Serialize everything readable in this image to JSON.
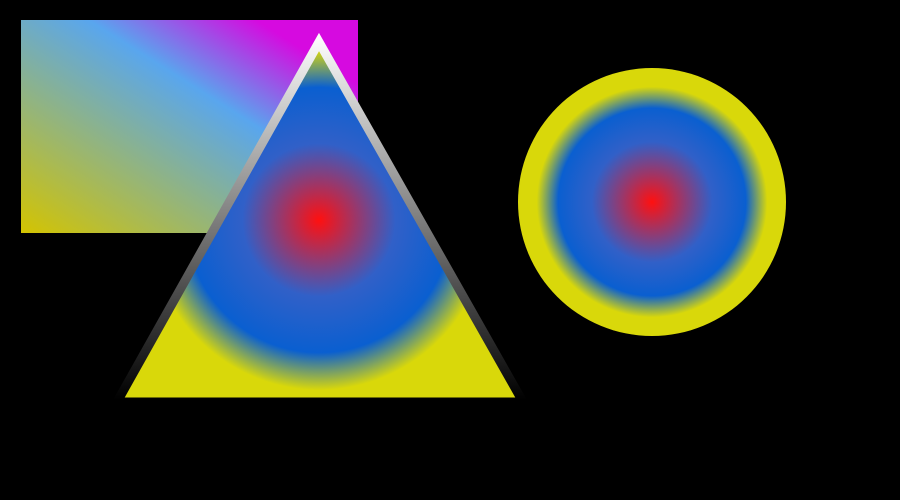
{
  "scene": {
    "background_color": "#000000",
    "shapes": [
      {
        "kind": "rectangle",
        "fill": "linear-gradient",
        "gradient_stops": [
          "#d4c400",
          "#59a6ee",
          "#d60ae0"
        ]
      },
      {
        "kind": "triangle",
        "fill": "radial-gradient",
        "gradient_stops": [
          "#ff1010",
          "#3160c8",
          "#0a5fd0",
          "#d9d80a"
        ],
        "stroke": "linear-gradient",
        "stroke_stops": [
          "#ffffff",
          "#000000"
        ]
      },
      {
        "kind": "circle",
        "fill": "radial-gradient",
        "gradient_stops": [
          "#ff1010",
          "#3160c8",
          "#0a5fd0",
          "#d9d80a"
        ]
      }
    ]
  }
}
